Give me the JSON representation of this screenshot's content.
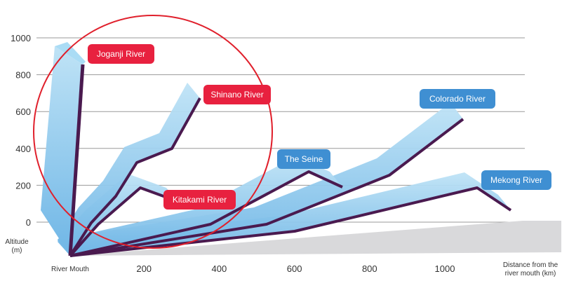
{
  "chart_data": {
    "type": "line",
    "title": "",
    "ylabel_lines": [
      "Altitude",
      "(m)"
    ],
    "xlabel_lines": [
      "Distance from the",
      "river mouth (km)"
    ],
    "x_origin_label": "River Mouth",
    "xticks": [
      200,
      400,
      600,
      800,
      1000
    ],
    "yticks": [
      0,
      200,
      400,
      600,
      800,
      1000
    ],
    "ylim": [
      0,
      1000
    ],
    "xlim": [
      0,
      1100
    ],
    "grid": true,
    "series": [
      {
        "name": "Joganji River",
        "color": "#e8213f",
        "x": [
          0,
          56
        ],
        "y": [
          0,
          960
        ]
      },
      {
        "name": "Shinano River",
        "color": "#e8213f",
        "x": [
          0,
          120,
          200,
          300,
          370
        ],
        "y": [
          0,
          120,
          400,
          400,
          700
        ]
      },
      {
        "name": "Kitakami River",
        "color": "#e8213f",
        "x": [
          0,
          120,
          200,
          270
        ],
        "y": [
          0,
          100,
          180,
          120
        ]
      },
      {
        "name": "The Seine",
        "color": "#3f8fd2",
        "x": [
          0,
          400,
          640
        ],
        "y": [
          0,
          120,
          300
        ]
      },
      {
        "name": "Colorado River",
        "color": "#3f8fd2",
        "x": [
          0,
          600,
          1000
        ],
        "y": [
          0,
          220,
          600
        ]
      },
      {
        "name": "Mekong River",
        "color": "#3f8fd2",
        "x": [
          0,
          700,
          1050
        ],
        "y": [
          0,
          120,
          200
        ]
      }
    ],
    "highlight": "circle around Japanese rivers"
  }
}
